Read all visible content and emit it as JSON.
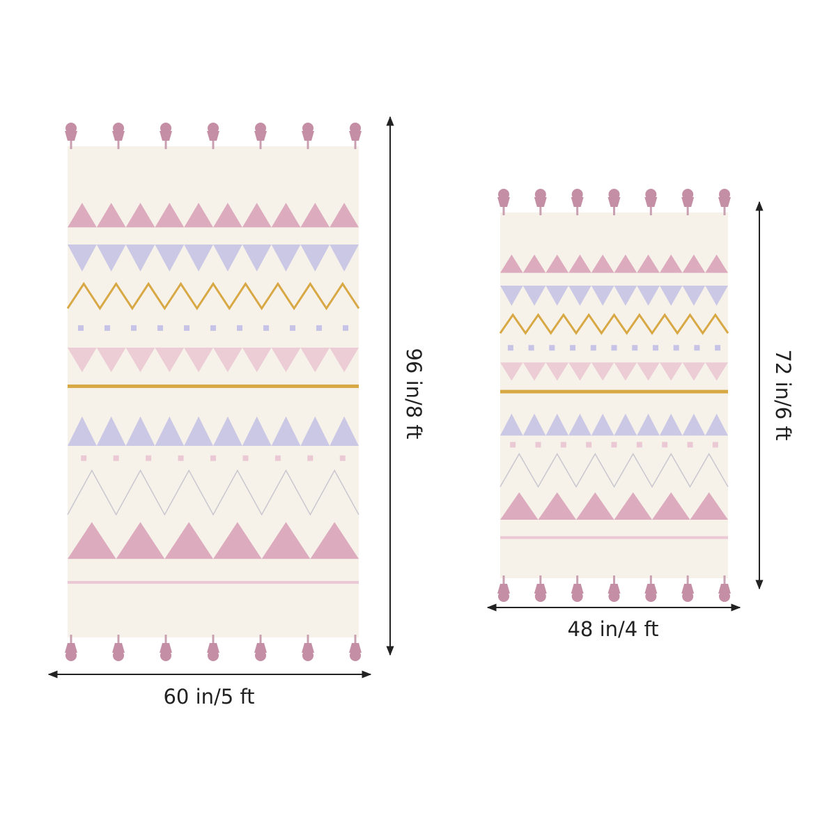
{
  "rugs": [
    {
      "height_label": "96 in/8 ft",
      "width_label": "60 in/5 ft"
    },
    {
      "height_label": "72 in/6 ft",
      "width_label": "48 in/4 ft"
    }
  ]
}
